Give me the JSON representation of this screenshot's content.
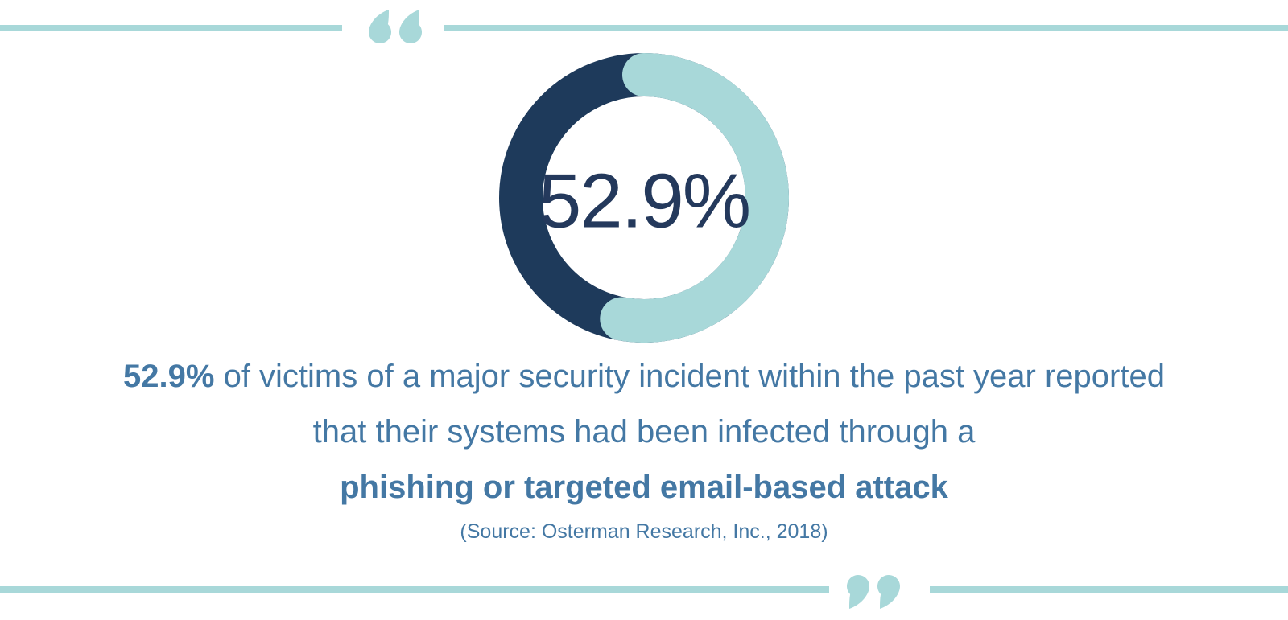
{
  "theme": {
    "teal": "#a8d8d9",
    "navy": "#1e3a5b",
    "number_navy": "#24395c",
    "text_blue": "#4478a4",
    "background": "#ffffff"
  },
  "chart_data": {
    "type": "pie",
    "donut": true,
    "title": "",
    "center_label": "52.9%",
    "labels": [
      "value_pct",
      "remainder_pct"
    ],
    "values": [
      52.9,
      47.1
    ],
    "colors": [
      "#a8d8d9",
      "#1e3a5b"
    ],
    "start_angle_deg": 0,
    "direction": "clockwise",
    "legend": "none",
    "rounded_caps": true
  },
  "statement": {
    "line1_bold": "52.9%",
    "line1_rest": " of victims of a major security incident within the past year reported",
    "line2": "that their systems had been infected through a",
    "line3_bold": "phishing or targeted email-based attack",
    "source": "(Source: Osterman Research, Inc., 2018)"
  }
}
